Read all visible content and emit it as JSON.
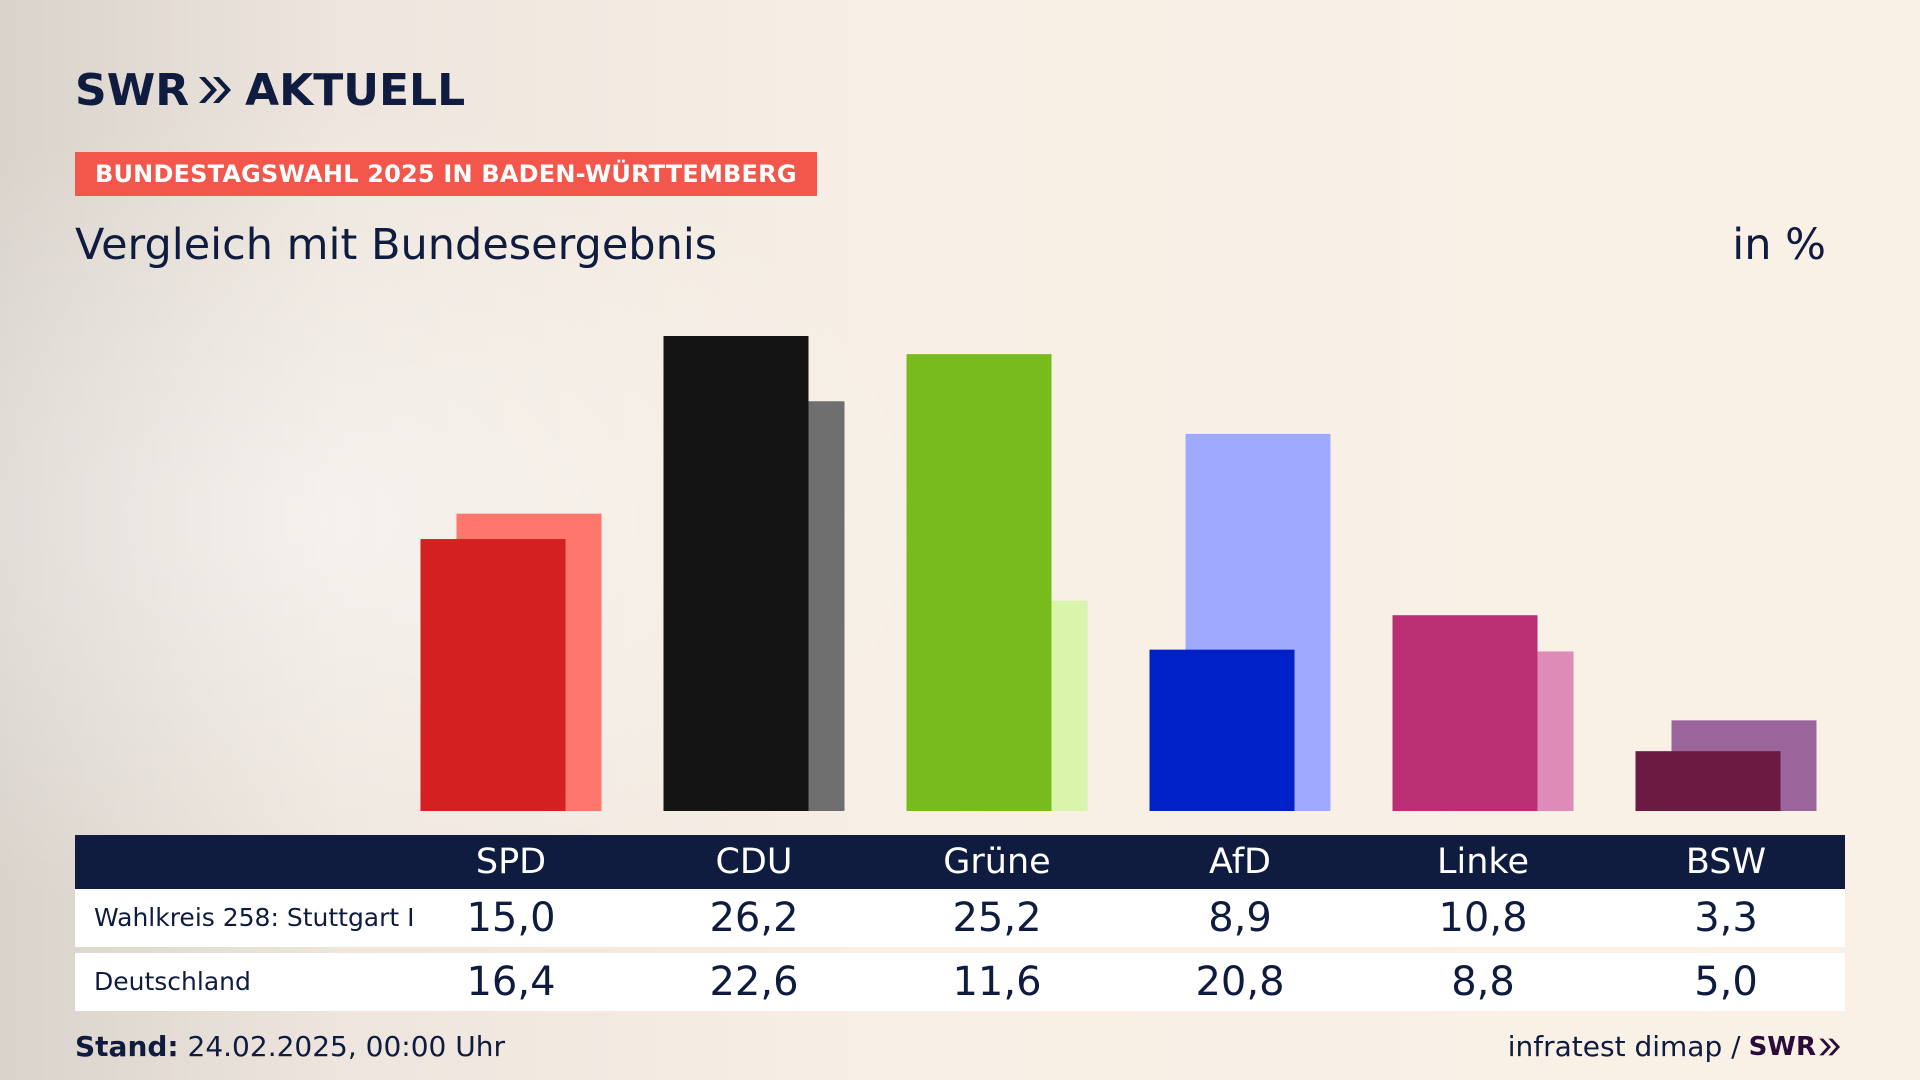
{
  "brand": {
    "name": "SWR",
    "product": "AKTUELL",
    "arrows_icon": "double-chevron-right-icon",
    "color": "#0f1c3f"
  },
  "tag": {
    "text": "BUNDESTAGSWAHL 2025 IN BADEN-WÜRTTEMBERG",
    "color": "#f3564a"
  },
  "subtitle": "Vergleich mit Bundesergebnis",
  "unit": "in %",
  "table": {
    "rows": [
      {
        "label": "Wahlkreis 258: Stuttgart I"
      },
      {
        "label": "Deutschland"
      }
    ]
  },
  "footer": {
    "stand_label": "Stand:",
    "stand_value": "24.02.2025, 00:00 Uhr",
    "source": "infratest dimap /",
    "source_logo": "SWR"
  },
  "chart_data": {
    "type": "bar",
    "categories": [
      "SPD",
      "CDU",
      "Grüne",
      "AfD",
      "Linke",
      "BSW"
    ],
    "series": [
      {
        "name": "Wahlkreis 258: Stuttgart I",
        "values": [
          15.0,
          26.2,
          25.2,
          8.9,
          10.8,
          3.3
        ],
        "colors": [
          "#d42020",
          "#141414",
          "#78bb1c",
          "#0020c8",
          "#bb3075",
          "#6b1b41"
        ]
      },
      {
        "name": "Deutschland",
        "values": [
          16.4,
          22.6,
          11.6,
          20.8,
          8.8,
          5.0
        ],
        "colors": [
          "#ff766d",
          "#6f6f6f",
          "#d8f5ab",
          "#9eaaff",
          "#df8bb8",
          "#9a659b"
        ]
      }
    ],
    "value_labels": {
      "Wahlkreis 258: Stuttgart I": [
        "15,0",
        "26,2",
        "25,2",
        "8,9",
        "10,8",
        "3,3"
      ],
      "Deutschland": [
        "16,4",
        "22,6",
        "11,6",
        "20,8",
        "8,8",
        "5,0"
      ]
    },
    "ylim": [
      0,
      26.2
    ],
    "grid": false,
    "legend": "table below chart"
  }
}
